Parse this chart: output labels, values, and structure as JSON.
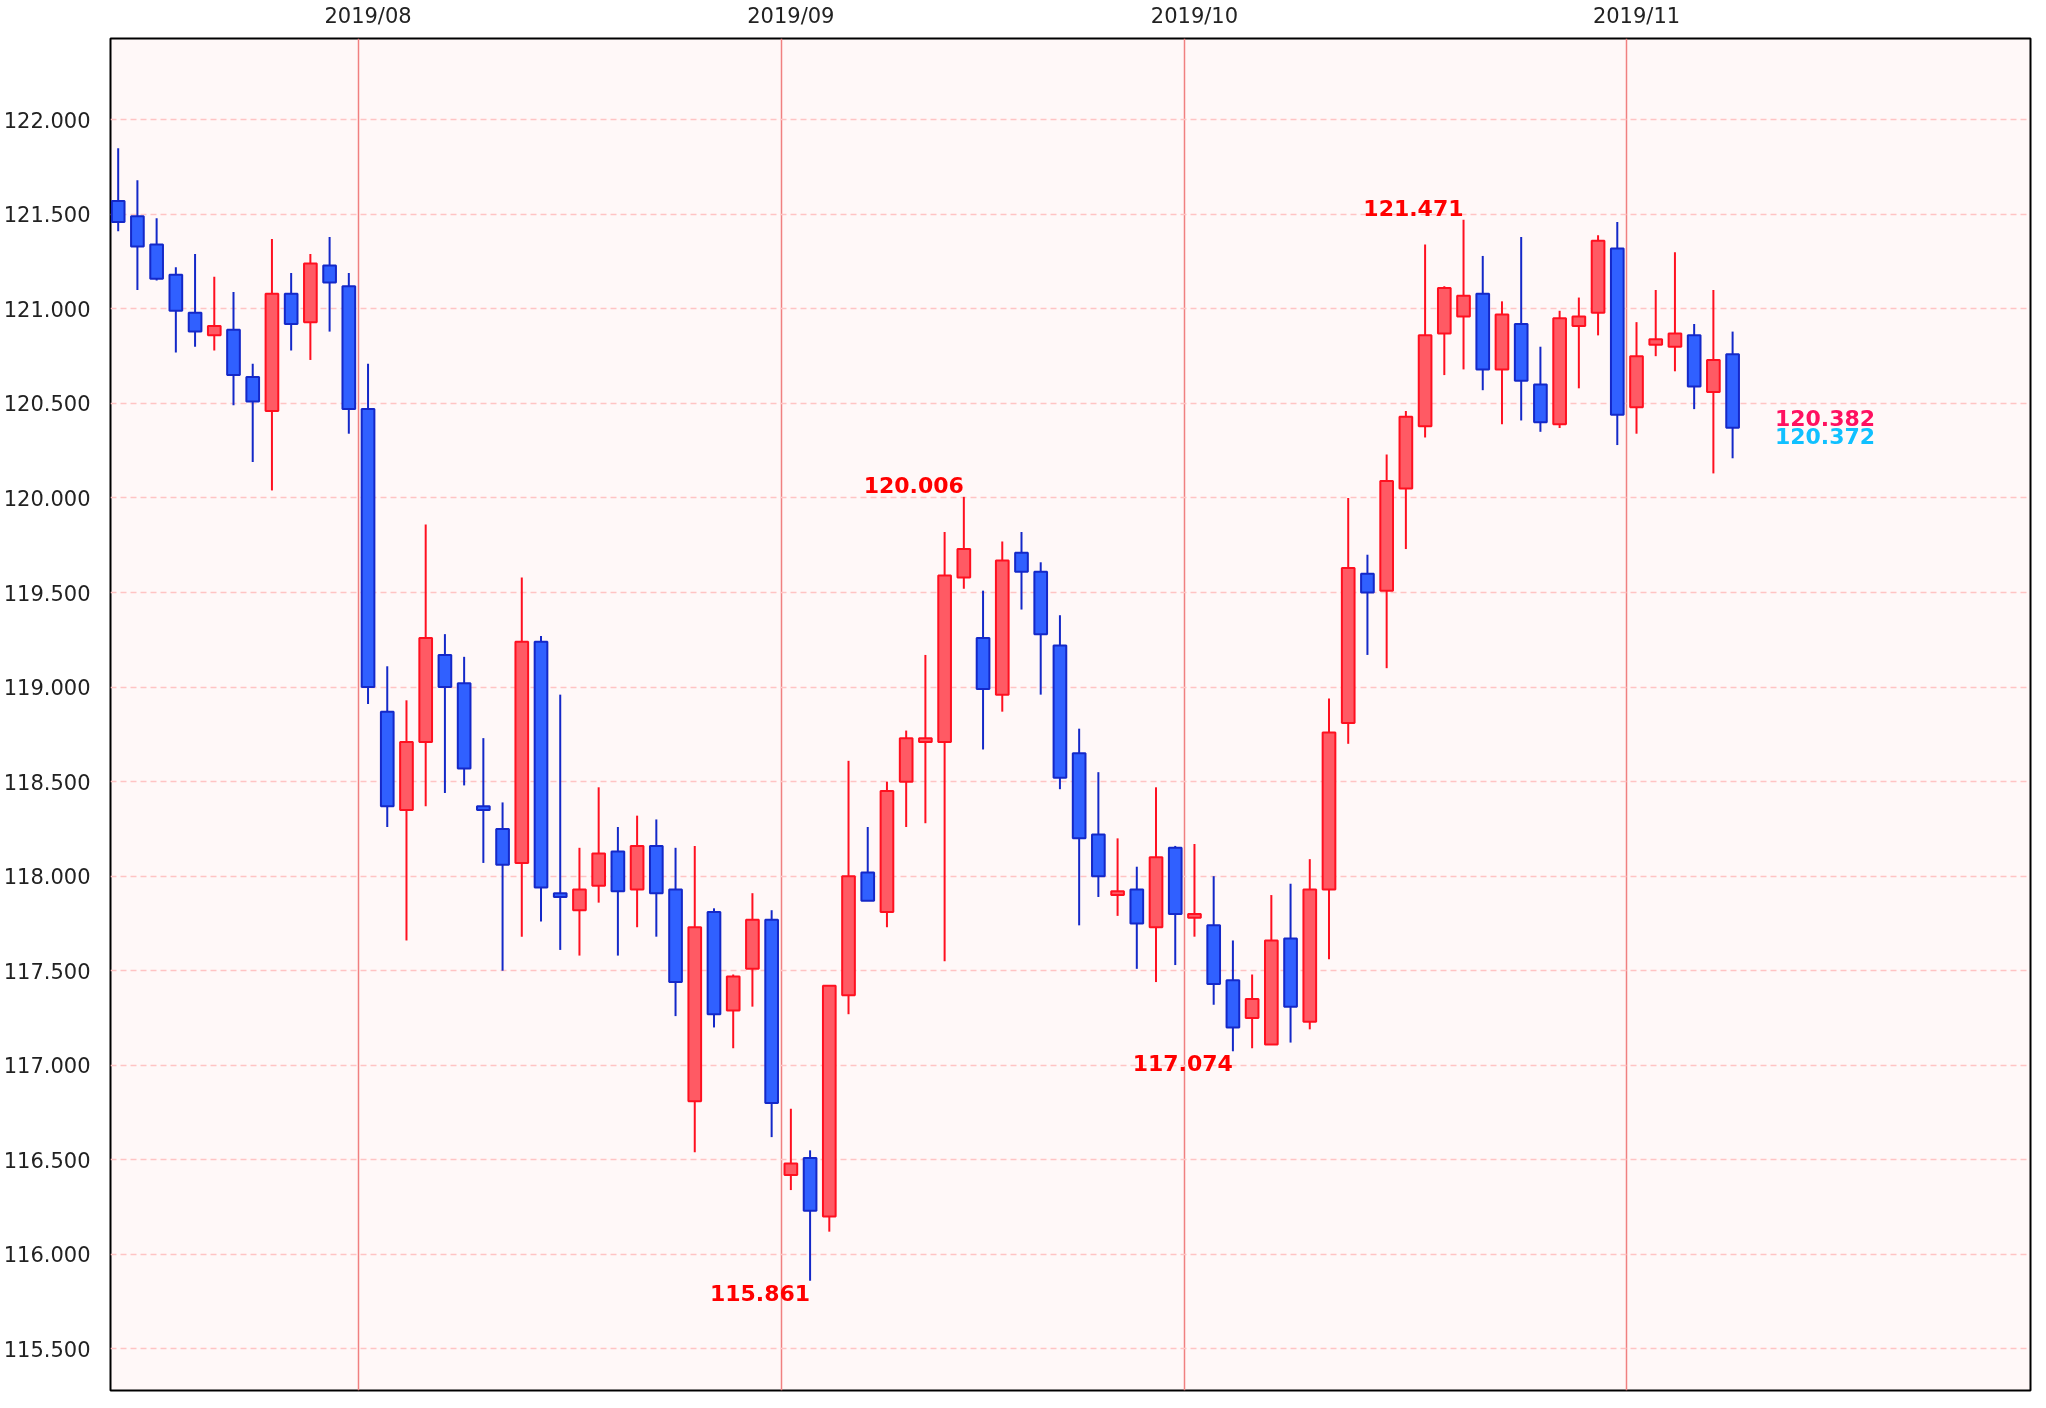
{
  "chart_data": {
    "type": "candlestick",
    "categories": [
      null,
      null,
      null,
      null,
      null,
      null,
      null,
      null,
      null,
      null,
      null,
      null,
      null,
      "2019/08",
      null,
      null,
      null,
      null,
      null,
      null,
      null,
      null,
      null,
      null,
      null,
      null,
      null,
      null,
      null,
      null,
      null,
      null,
      null,
      null,
      null,
      "2019/09",
      null,
      null,
      null,
      null,
      null,
      null,
      null,
      null,
      null,
      null,
      null,
      null,
      null,
      null,
      null,
      null,
      null,
      null,
      null,
      null,
      "2019/10",
      null,
      null,
      null,
      null,
      null,
      null,
      null,
      null,
      null,
      null,
      null,
      null,
      null,
      null,
      null,
      null,
      null,
      null,
      null,
      null,
      null,
      null,
      "2019/11",
      null,
      null,
      null,
      null,
      null
    ],
    "ohlc": [
      [
        121.57,
        121.85,
        121.41,
        121.46
      ],
      [
        121.49,
        121.68,
        121.1,
        121.33
      ],
      [
        121.34,
        121.48,
        121.15,
        121.16
      ],
      [
        121.18,
        121.22,
        120.77,
        120.99
      ],
      [
        120.98,
        121.29,
        120.8,
        120.88
      ],
      [
        120.86,
        121.17,
        120.78,
        120.91
      ],
      [
        120.89,
        121.09,
        120.49,
        120.65
      ],
      [
        120.64,
        120.71,
        120.19,
        120.51
      ],
      [
        120.46,
        121.37,
        120.04,
        121.08
      ],
      [
        121.08,
        121.19,
        120.78,
        120.92
      ],
      [
        120.93,
        121.29,
        120.73,
        121.24
      ],
      [
        121.23,
        121.38,
        120.88,
        121.14
      ],
      [
        121.12,
        121.19,
        120.34,
        120.47
      ],
      [
        120.47,
        120.71,
        118.91,
        119.0
      ],
      [
        118.87,
        119.11,
        118.26,
        118.37
      ],
      [
        118.35,
        118.93,
        117.66,
        118.71
      ],
      [
        118.71,
        119.86,
        118.37,
        119.26
      ],
      [
        119.17,
        119.28,
        118.44,
        119.0
      ],
      [
        119.02,
        119.16,
        118.48,
        118.57
      ],
      [
        118.37,
        118.73,
        118.07,
        118.35
      ],
      [
        118.25,
        118.39,
        117.5,
        118.06
      ],
      [
        118.07,
        119.58,
        117.68,
        119.24
      ],
      [
        119.24,
        119.27,
        117.76,
        117.94
      ],
      [
        117.91,
        118.96,
        117.61,
        117.89
      ],
      [
        117.82,
        118.15,
        117.58,
        117.93
      ],
      [
        117.95,
        118.47,
        117.86,
        118.12
      ],
      [
        118.13,
        118.26,
        117.58,
        117.92
      ],
      [
        117.93,
        118.32,
        117.73,
        118.16
      ],
      [
        118.16,
        118.3,
        117.68,
        117.91
      ],
      [
        117.93,
        118.15,
        117.26,
        117.44
      ],
      [
        116.81,
        118.16,
        116.54,
        117.73
      ],
      [
        117.81,
        117.83,
        117.2,
        117.27
      ],
      [
        117.29,
        117.48,
        117.09,
        117.47
      ],
      [
        117.51,
        117.91,
        117.31,
        117.77
      ],
      [
        117.77,
        117.82,
        116.62,
        116.8
      ],
      [
        116.42,
        116.77,
        116.34,
        116.48
      ],
      [
        116.51,
        116.55,
        115.861,
        116.23
      ],
      [
        116.2,
        117.42,
        116.12,
        117.42
      ],
      [
        117.37,
        118.61,
        117.27,
        118.0
      ],
      [
        118.02,
        118.26,
        117.87,
        117.87
      ],
      [
        117.81,
        118.5,
        117.73,
        118.45
      ],
      [
        118.5,
        118.77,
        118.26,
        118.73
      ],
      [
        118.71,
        119.17,
        118.28,
        118.73
      ],
      [
        118.71,
        119.82,
        117.55,
        119.59
      ],
      [
        119.58,
        120.006,
        119.52,
        119.73
      ],
      [
        119.26,
        119.51,
        118.67,
        118.99
      ],
      [
        118.96,
        119.77,
        118.87,
        119.67
      ],
      [
        119.71,
        119.82,
        119.41,
        119.61
      ],
      [
        119.61,
        119.66,
        118.96,
        119.28
      ],
      [
        119.22,
        119.38,
        118.46,
        118.52
      ],
      [
        118.65,
        118.78,
        117.74,
        118.2
      ],
      [
        118.22,
        118.55,
        117.89,
        118.0
      ],
      [
        117.9,
        118.2,
        117.79,
        117.92
      ],
      [
        117.93,
        118.05,
        117.51,
        117.75
      ],
      [
        117.73,
        118.47,
        117.44,
        118.1
      ],
      [
        118.15,
        118.16,
        117.53,
        117.8
      ],
      [
        117.78,
        118.17,
        117.68,
        117.8
      ],
      [
        117.74,
        118.0,
        117.32,
        117.43
      ],
      [
        117.45,
        117.66,
        117.074,
        117.2
      ],
      [
        117.25,
        117.48,
        117.09,
        117.35
      ],
      [
        117.11,
        117.9,
        117.11,
        117.66
      ],
      [
        117.67,
        117.96,
        117.12,
        117.31
      ],
      [
        117.23,
        118.09,
        117.19,
        117.93
      ],
      [
        117.93,
        118.94,
        117.56,
        118.76
      ],
      [
        118.81,
        120.0,
        118.7,
        119.63
      ],
      [
        119.6,
        119.7,
        119.17,
        119.5
      ],
      [
        119.51,
        120.23,
        119.1,
        120.09
      ],
      [
        120.05,
        120.46,
        119.73,
        120.43
      ],
      [
        120.38,
        121.34,
        120.32,
        120.86
      ],
      [
        120.87,
        121.12,
        120.65,
        121.11
      ],
      [
        120.96,
        121.471,
        120.68,
        121.07
      ],
      [
        121.08,
        121.28,
        120.57,
        120.68
      ],
      [
        120.68,
        121.04,
        120.39,
        120.97
      ],
      [
        120.92,
        121.38,
        120.41,
        120.62
      ],
      [
        120.6,
        120.8,
        120.35,
        120.4
      ],
      [
        120.39,
        120.99,
        120.37,
        120.95
      ],
      [
        120.91,
        121.06,
        120.58,
        120.96
      ],
      [
        120.98,
        121.39,
        120.86,
        121.36
      ],
      [
        121.32,
        121.46,
        120.28,
        120.44
      ],
      [
        120.48,
        120.93,
        120.34,
        120.75
      ],
      [
        120.81,
        121.1,
        120.75,
        120.84
      ],
      [
        120.8,
        121.3,
        120.67,
        120.87
      ],
      [
        120.86,
        120.92,
        120.47,
        120.59
      ],
      [
        120.56,
        121.1,
        120.13,
        120.73
      ],
      [
        120.76,
        120.88,
        120.21,
        120.372
      ]
    ],
    "ylim": [
      115.28,
      122.43
    ],
    "yticks": [
      {
        "value": 115.5,
        "label": "115.500"
      },
      {
        "value": 116,
        "label": "116.000"
      },
      {
        "value": 116.5,
        "label": "116.500"
      },
      {
        "value": 117,
        "label": "117.000"
      },
      {
        "value": 117.5,
        "label": "117.500"
      },
      {
        "value": 118,
        "label": "118.000"
      },
      {
        "value": 118.5,
        "label": "118.500"
      },
      {
        "value": 119,
        "label": "119.000"
      },
      {
        "value": 119.5,
        "label": "119.500"
      },
      {
        "value": 120,
        "label": "120.000"
      },
      {
        "value": 120.5,
        "label": "120.500"
      },
      {
        "value": 121,
        "label": "121.000"
      },
      {
        "value": 121.5,
        "label": "121.500"
      },
      {
        "value": 122,
        "label": "122.000"
      }
    ],
    "grid": true,
    "annotations": [
      "121.471",
      "120.006",
      "115.861",
      "117.074",
      "120.382",
      "120.372"
    ]
  }
}
